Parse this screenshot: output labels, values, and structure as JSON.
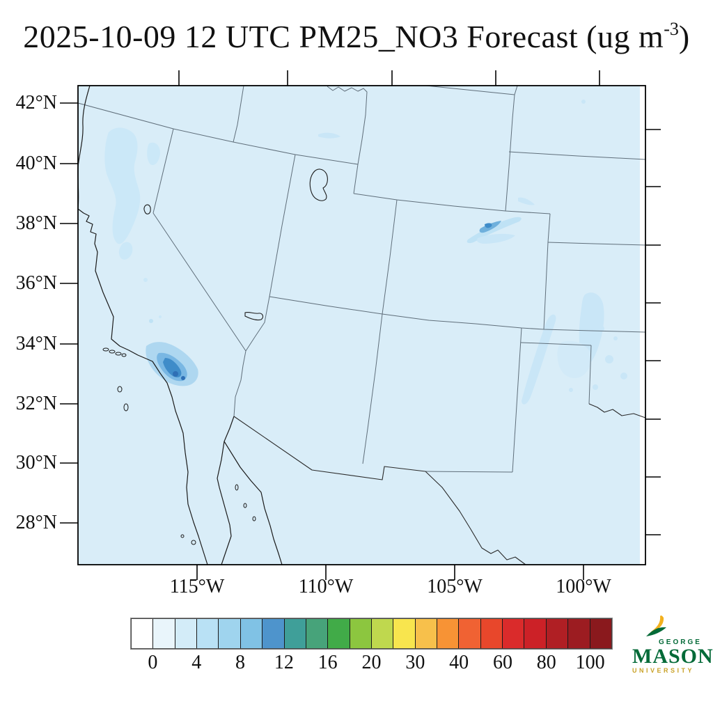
{
  "title": {
    "main": "2025-10-09 12 UTC PM25_NO3 Forecast (ug m",
    "superscript": "-3",
    "end": ")"
  },
  "map": {
    "lat_labels": [
      "42°N",
      "40°N",
      "38°N",
      "36°N",
      "34°N",
      "32°N",
      "30°N",
      "28°N"
    ],
    "lon_labels": [
      "115°W",
      "110°W",
      "105°W",
      "100°W"
    ],
    "background_color": "#d9edf8",
    "region": "Southwestern United States and Northern Mexico",
    "features": [
      "state-borders",
      "coastline",
      "channel-islands",
      "gulf-of-california",
      "great-salt-lake",
      "lake-tahoe",
      "lake-mead"
    ],
    "plumes": [
      {
        "name": "southern-california",
        "peak_color": "#2e6fb5"
      },
      {
        "name": "southeast-colorado",
        "peak_color": "#3f8cc9"
      },
      {
        "name": "western-nevada-sierra",
        "peak_color": "#c9e6f7"
      },
      {
        "name": "west-kansas-oklahoma-panhandle",
        "peak_color": "#c9e6f7"
      },
      {
        "name": "southwest-wyoming",
        "peak_color": "#c9e6f7"
      }
    ]
  },
  "colorbar": {
    "tick_labels": [
      "0",
      "4",
      "8",
      "12",
      "16",
      "20",
      "30",
      "40",
      "60",
      "80",
      "100"
    ],
    "boundary_values": [
      0,
      2,
      4,
      6,
      8,
      10,
      12,
      14,
      16,
      18,
      20,
      25,
      30,
      35,
      40,
      50,
      60,
      70,
      80,
      90,
      100
    ],
    "cell_colors": [
      "#ffffff",
      "#e9f5fb",
      "#d3ecf8",
      "#b9e1f5",
      "#9fd4ee",
      "#80c2e5",
      "#4e94cc",
      "#3f9f99",
      "#47a37a",
      "#41ab48",
      "#8cc63f",
      "#bfd84e",
      "#f8e54e",
      "#f7c04b",
      "#f79335",
      "#f06233",
      "#e8472b",
      "#da2b2b",
      "#cc2127",
      "#b01f24",
      "#9c1c21",
      "#8a191d"
    ]
  },
  "logo": {
    "small_text": "GEORGE",
    "large_text": "MASON",
    "bottom_text": "UNIVERSITY",
    "green": "#046a38",
    "gold": "#f2b01e"
  }
}
